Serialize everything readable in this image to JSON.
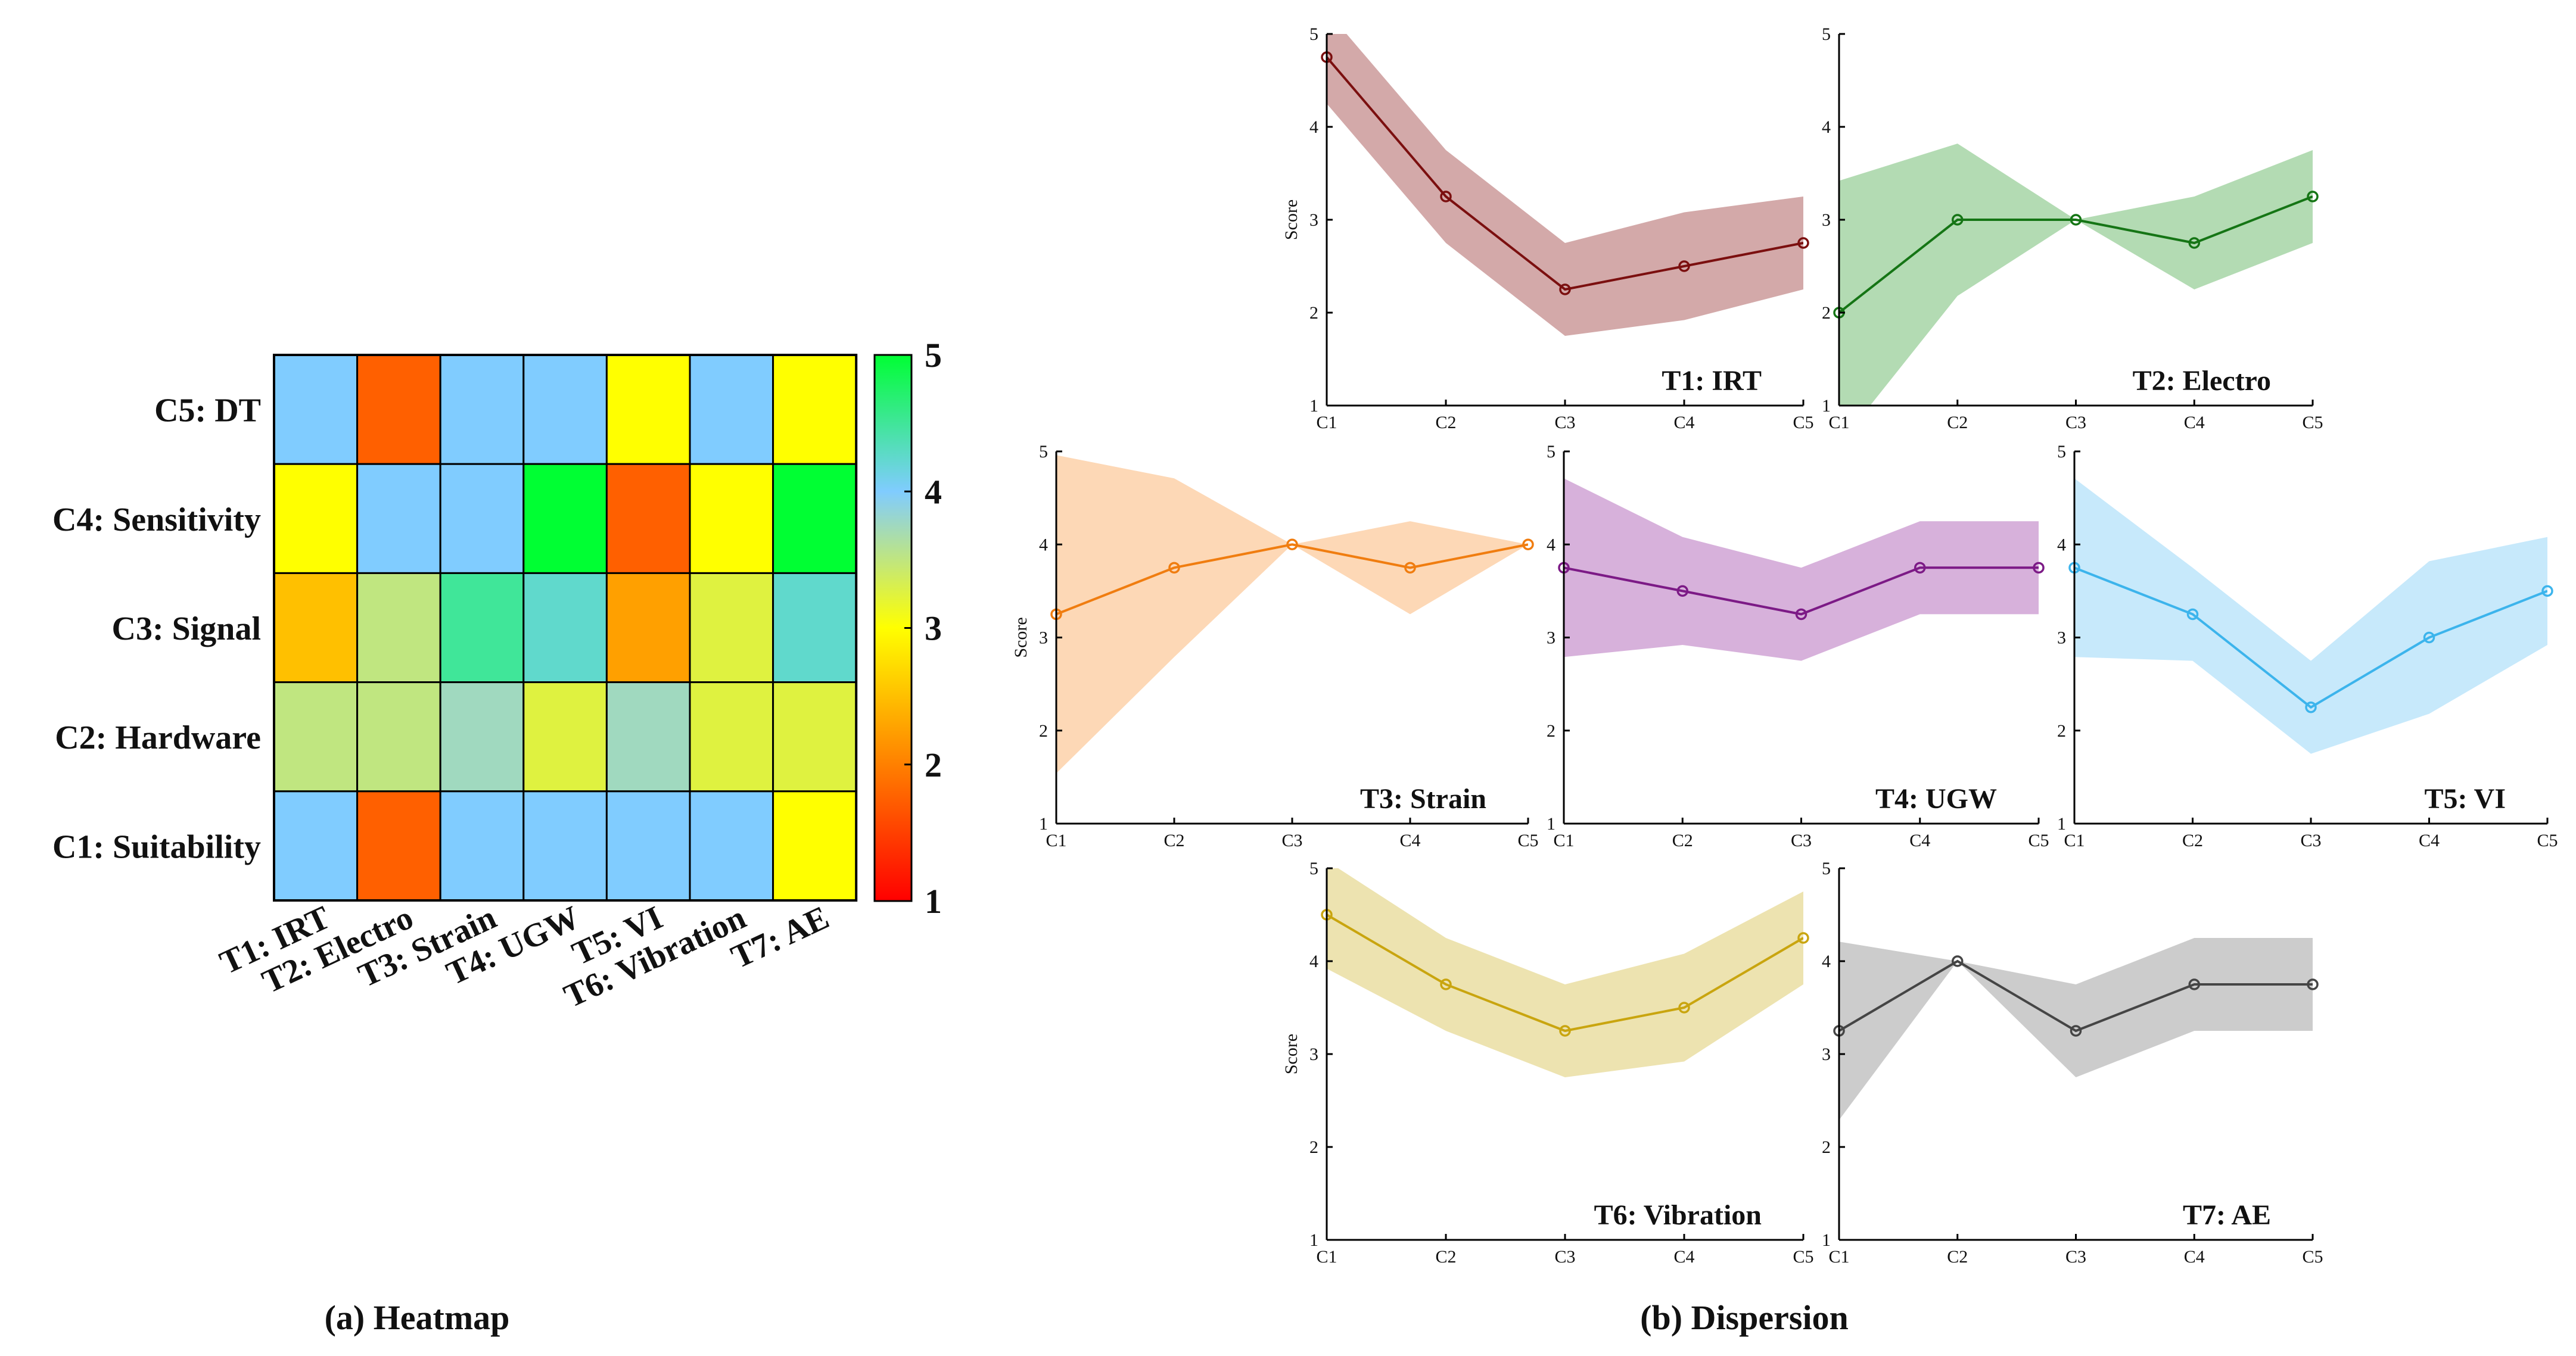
{
  "captions": {
    "heatmap": "(a) Heatmap",
    "dispersion": "(b) Dispersion"
  },
  "chart_data": [
    {
      "type": "heatmap",
      "title": "(a) Heatmap",
      "rows": [
        "C5: DT",
        "C4: Sensitivity",
        "C3: Signal",
        "C2: Hardware",
        "C1: Suitability"
      ],
      "columns": [
        "T1: IRT",
        "T2: Electro",
        "T3: Strain",
        "T4: UGW",
        "T5: VI",
        "T6: Vibration",
        "T7: AE"
      ],
      "values": [
        [
          4.0,
          1.75,
          4.0,
          4.0,
          3.0,
          4.0,
          3.0
        ],
        [
          3.0,
          4.0,
          4.0,
          5.0,
          1.75,
          3.0,
          5.0
        ],
        [
          2.5,
          3.5,
          4.5,
          4.25,
          2.25,
          3.25,
          4.25
        ],
        [
          3.5,
          3.5,
          3.75,
          3.25,
          3.75,
          3.25,
          3.25
        ],
        [
          4.0,
          1.75,
          4.0,
          4.0,
          4.0,
          4.0,
          3.0
        ]
      ],
      "colorbar": {
        "min": 1,
        "max": 5,
        "ticks": [
          "1",
          "2",
          "3",
          "4",
          "5"
        ],
        "colors": [
          "#ff0000",
          "#ff8000",
          "#ffff00",
          "#80ccff",
          "#00ff33"
        ]
      }
    },
    {
      "type": "area",
      "title": "(b) Dispersion",
      "ylabel": "Score",
      "ylim": [
        1,
        5
      ],
      "x": [
        "C1",
        "C2",
        "C3",
        "C4",
        "C5"
      ],
      "yticks": [
        "1",
        "2",
        "3",
        "4",
        "5"
      ],
      "series": [
        {
          "name": "T1: IRT",
          "color": "#7b0f0f",
          "fill": "#d3a9a9",
          "mean": [
            4.75,
            3.25,
            2.25,
            2.5,
            2.75
          ],
          "upper": [
            5.25,
            3.75,
            2.75,
            3.08,
            3.25
          ],
          "lower": [
            4.25,
            2.75,
            1.75,
            1.92,
            2.25
          ]
        },
        {
          "name": "T2: Electro",
          "color": "#157515",
          "fill": "#b3dbb3",
          "mean": [
            2.0,
            3.0,
            3.0,
            2.75,
            3.25
          ],
          "upper": [
            3.42,
            3.82,
            3.0,
            3.25,
            3.75
          ],
          "lower": [
            0.58,
            2.18,
            3.0,
            2.25,
            2.75
          ]
        },
        {
          "name": "T3: Strain",
          "color": "#f07d10",
          "fill": "#fdd8b6",
          "mean": [
            3.25,
            3.75,
            4.0,
            3.75,
            4.0
          ],
          "upper": [
            4.96,
            4.71,
            4.0,
            4.25,
            4.0
          ],
          "lower": [
            1.54,
            2.79,
            4.0,
            3.25,
            4.0
          ]
        },
        {
          "name": "T4: UGW",
          "color": "#7c1a86",
          "fill": "#d7b1db",
          "mean": [
            3.75,
            3.5,
            3.25,
            3.75,
            3.75
          ],
          "upper": [
            4.71,
            4.08,
            3.75,
            4.25,
            4.25
          ],
          "lower": [
            2.79,
            2.92,
            2.75,
            3.25,
            3.25
          ]
        },
        {
          "name": "T5: VI",
          "color": "#3cb4ec",
          "fill": "#c7e9fb",
          "mean": [
            3.75,
            3.25,
            2.25,
            3.0,
            3.5
          ],
          "upper": [
            4.71,
            3.75,
            2.75,
            3.82,
            4.08
          ],
          "lower": [
            2.79,
            2.75,
            1.75,
            2.18,
            2.92
          ]
        },
        {
          "name": "T6: Vibration",
          "color": "#c9a50f",
          "fill": "#ede3b0",
          "mean": [
            4.5,
            3.75,
            3.25,
            3.5,
            4.25
          ],
          "upper": [
            5.08,
            4.25,
            3.75,
            4.08,
            4.75
          ],
          "lower": [
            3.92,
            3.25,
            2.75,
            2.92,
            3.75
          ]
        },
        {
          "name": "T7: AE",
          "color": "#454545",
          "fill": "#cccccc",
          "mean": [
            3.25,
            4.0,
            3.25,
            3.75,
            3.75
          ],
          "upper": [
            4.21,
            4.0,
            3.75,
            4.25,
            4.25
          ],
          "lower": [
            2.29,
            4.0,
            2.75,
            3.25,
            3.25
          ]
        }
      ]
    }
  ]
}
